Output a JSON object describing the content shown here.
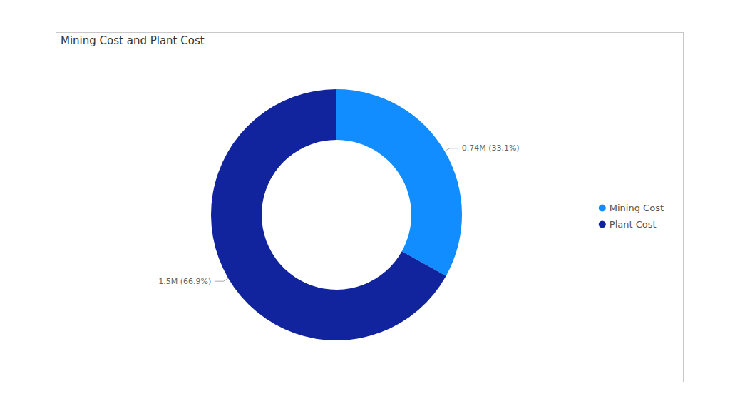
{
  "chart_data": {
    "type": "donut",
    "title": "Mining Cost and Plant Cost",
    "categories": [
      "Mining Cost",
      "Plant Cost"
    ],
    "values": [
      0.742,
      1.5
    ],
    "value_labels": [
      "0.74M (33.1%)",
      "1.5M (66.9%)"
    ],
    "colors": [
      "#118dff",
      "#12239e"
    ],
    "legend": "right",
    "data_labels": true
  }
}
